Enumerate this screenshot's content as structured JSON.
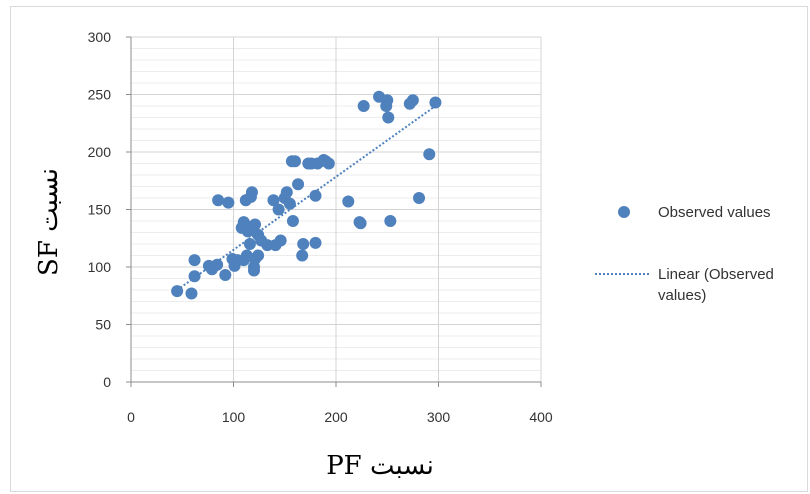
{
  "chart_data": {
    "type": "scatter",
    "xlabel": "نسبت PF",
    "ylabel": "نسبت SF",
    "xlim": [
      0,
      400
    ],
    "ylim": [
      0,
      300
    ],
    "xticks": [
      "0",
      "100",
      "200",
      "300",
      "400"
    ],
    "yticks": [
      "0",
      "50",
      "100",
      "150",
      "200",
      "250",
      "300"
    ],
    "grid": true,
    "legend_position": "right",
    "series": [
      {
        "name": "Observed values",
        "color": "#4f81bd",
        "points": [
          [
            45,
            79
          ],
          [
            59,
            77
          ],
          [
            62,
            92
          ],
          [
            62,
            106
          ],
          [
            76,
            101
          ],
          [
            79,
            98
          ],
          [
            84,
            102
          ],
          [
            85,
            158
          ],
          [
            92,
            93
          ],
          [
            95,
            156
          ],
          [
            99,
            107
          ],
          [
            101,
            101
          ],
          [
            104,
            106
          ],
          [
            108,
            134
          ],
          [
            110,
            139
          ],
          [
            110,
            106
          ],
          [
            112,
            158
          ],
          [
            113,
            110
          ],
          [
            114,
            131
          ],
          [
            115,
            135
          ],
          [
            116,
            120
          ],
          [
            117,
            161
          ],
          [
            118,
            165
          ],
          [
            120,
            97
          ],
          [
            120,
            100
          ],
          [
            121,
            137
          ],
          [
            121,
            107
          ],
          [
            124,
            128
          ],
          [
            124,
            110
          ],
          [
            127,
            123
          ],
          [
            133,
            119
          ],
          [
            139,
            158
          ],
          [
            141,
            119
          ],
          [
            144,
            150
          ],
          [
            146,
            123
          ],
          [
            150,
            160
          ],
          [
            152,
            165
          ],
          [
            155,
            155
          ],
          [
            157,
            192
          ],
          [
            158,
            140
          ],
          [
            160,
            192
          ],
          [
            163,
            172
          ],
          [
            167,
            110
          ],
          [
            168,
            120
          ],
          [
            173,
            190
          ],
          [
            176,
            190
          ],
          [
            180,
            162
          ],
          [
            180,
            121
          ],
          [
            182,
            190
          ],
          [
            188,
            193
          ],
          [
            190,
            192
          ],
          [
            193,
            190
          ],
          [
            212,
            157
          ],
          [
            223,
            139
          ],
          [
            224,
            138
          ],
          [
            227,
            240
          ],
          [
            242,
            248
          ],
          [
            249,
            240
          ],
          [
            250,
            245
          ],
          [
            251,
            230
          ],
          [
            253,
            140
          ],
          [
            272,
            242
          ],
          [
            275,
            245
          ],
          [
            281,
            160
          ],
          [
            291,
            198
          ],
          [
            297,
            243
          ]
        ]
      }
    ],
    "trendline": {
      "name": "Linear (Observed values)",
      "type": "linear",
      "color": "#4f81bd",
      "x": [
        45,
        297
      ],
      "y": [
        80,
        240
      ]
    }
  }
}
